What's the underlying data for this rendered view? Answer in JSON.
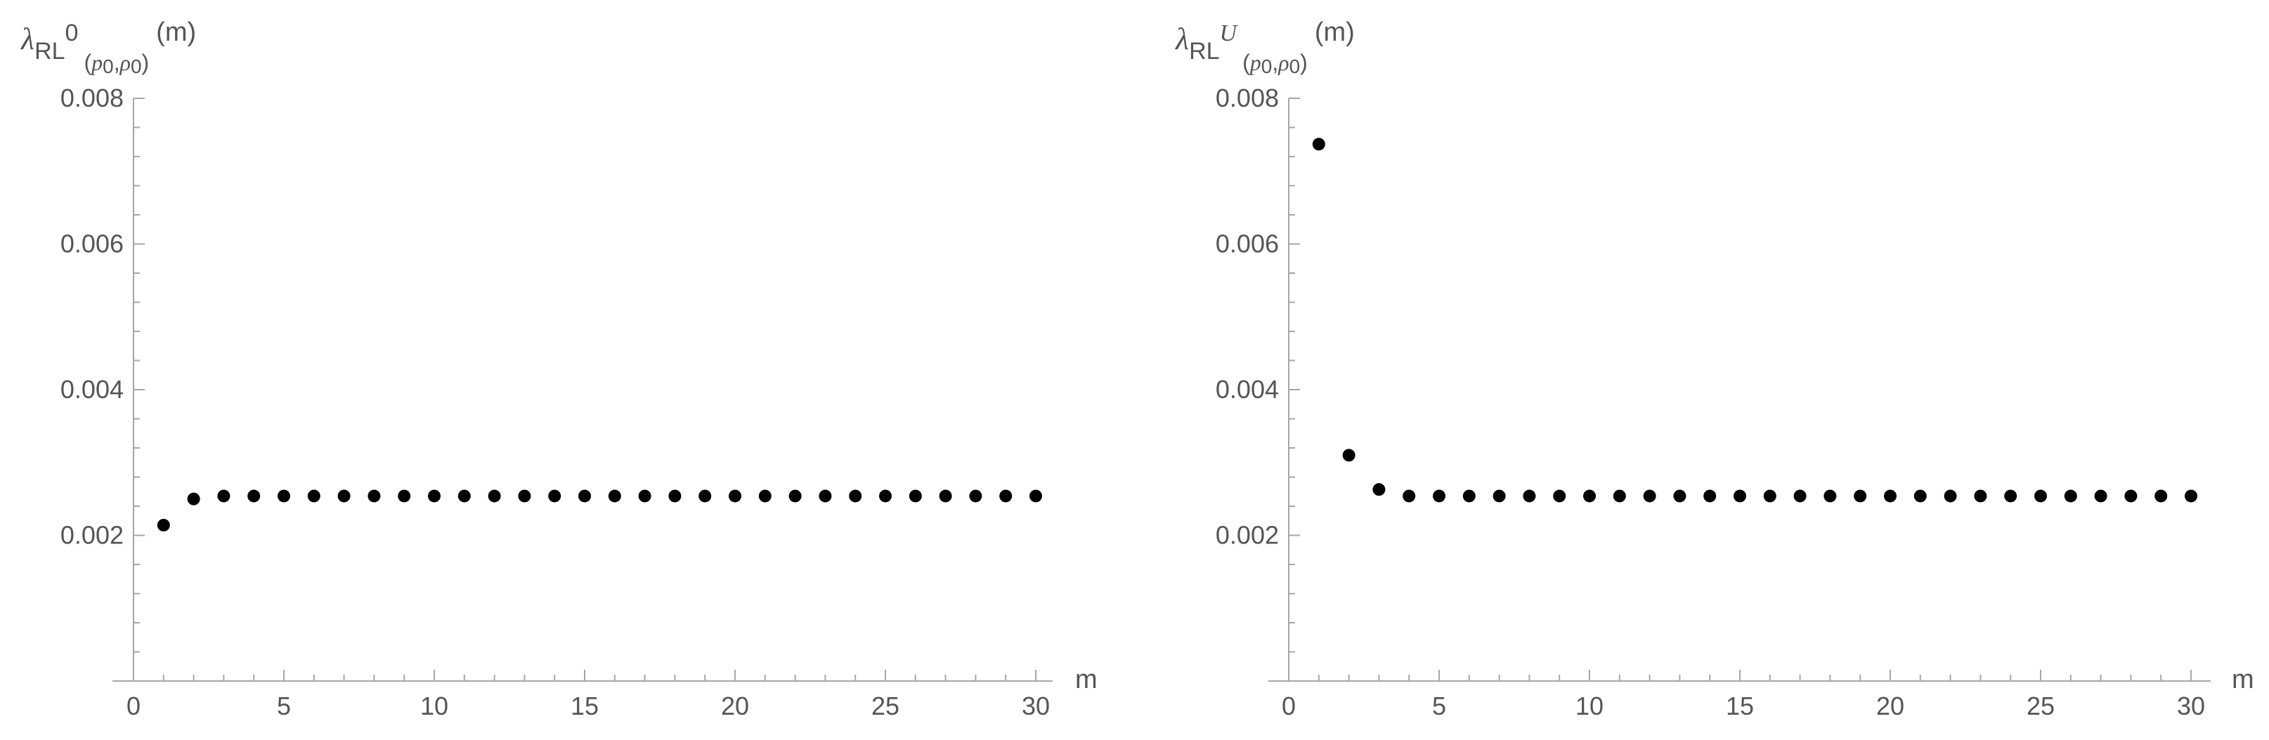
{
  "chart_data": [
    {
      "type": "scatter",
      "ylabel": {
        "lambda": "λ",
        "sub": "RL",
        "sup": "0",
        "sub2a": "(",
        "sub2b": "p",
        "sub2c": "0",
        "sub2d": ",",
        "sub2e": "ρ",
        "sub2f": "0",
        "sub2g": ")",
        "arg": "(m)"
      },
      "xlabel": "m",
      "xlim": [
        0,
        30
      ],
      "ylim": [
        0,
        0.008
      ],
      "xticks": [
        "0",
        "5",
        "10",
        "15",
        "20",
        "25",
        "30"
      ],
      "yticks": [
        "0.002",
        "0.004",
        "0.006",
        "0.008"
      ],
      "x": [
        1,
        2,
        3,
        4,
        5,
        6,
        7,
        8,
        9,
        10,
        11,
        12,
        13,
        14,
        15,
        16,
        17,
        18,
        19,
        20,
        21,
        22,
        23,
        24,
        25,
        26,
        27,
        28,
        29,
        30
      ],
      "y": [
        0.00214,
        0.0025,
        0.00254,
        0.00254,
        0.00254,
        0.00254,
        0.00254,
        0.00254,
        0.00254,
        0.00254,
        0.00254,
        0.00254,
        0.00254,
        0.00254,
        0.00254,
        0.00254,
        0.00254,
        0.00254,
        0.00254,
        0.00254,
        0.00254,
        0.00254,
        0.00254,
        0.00254,
        0.00254,
        0.00254,
        0.00254,
        0.00254,
        0.00254,
        0.00254
      ]
    },
    {
      "type": "scatter",
      "ylabel": {
        "lambda": "λ",
        "sub": "RL",
        "sup": "U",
        "sub2a": "(",
        "sub2b": "p",
        "sub2c": "0",
        "sub2d": ",",
        "sub2e": "ρ",
        "sub2f": "0",
        "sub2g": ")",
        "arg": "(m)"
      },
      "xlabel": "m",
      "xlim": [
        0,
        30
      ],
      "ylim": [
        0,
        0.008
      ],
      "xticks": [
        "0",
        "5",
        "10",
        "15",
        "20",
        "25",
        "30"
      ],
      "yticks": [
        "0.002",
        "0.004",
        "0.006",
        "0.008"
      ],
      "x": [
        1,
        2,
        3,
        4,
        5,
        6,
        7,
        8,
        9,
        10,
        11,
        12,
        13,
        14,
        15,
        16,
        17,
        18,
        19,
        20,
        21,
        22,
        23,
        24,
        25,
        26,
        27,
        28,
        29,
        30
      ],
      "y": [
        0.00737,
        0.0031,
        0.00263,
        0.00254,
        0.00254,
        0.00254,
        0.00254,
        0.00254,
        0.00254,
        0.00254,
        0.00254,
        0.00254,
        0.00254,
        0.00254,
        0.00254,
        0.00254,
        0.00254,
        0.00254,
        0.00254,
        0.00254,
        0.00254,
        0.00254,
        0.00254,
        0.00254,
        0.00254,
        0.00254,
        0.00254,
        0.00254,
        0.00254,
        0.00254
      ]
    }
  ]
}
